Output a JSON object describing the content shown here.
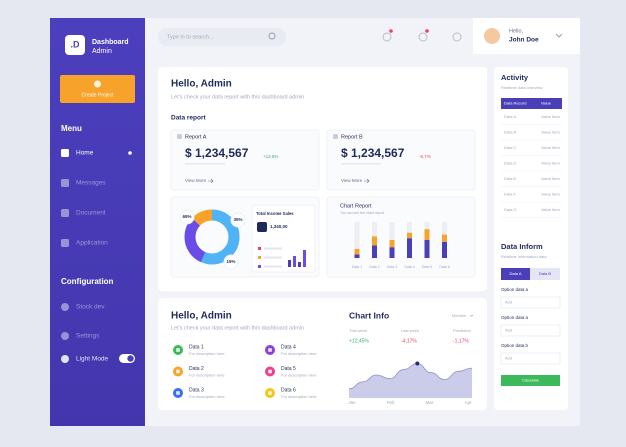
{
  "sidebar": {
    "logo": ".D",
    "brand": "Dashboard",
    "role": "Admin",
    "create_button": "Create Project",
    "menu_title": "Menu",
    "menu": [
      "Home",
      "Messages",
      "Document",
      "Application"
    ],
    "config_title": "Configuration",
    "config": [
      "Stock dev",
      "Settings",
      "Light Mode"
    ]
  },
  "topbar": {
    "search": "Type in to search...",
    "greeting": "Hello,",
    "user": "John Doe"
  },
  "overview": {
    "title": "Hello, Admin",
    "subtitle": "Let's check your data report with this dashboard admin",
    "section": "Data report",
    "reports": [
      {
        "name": "Report A",
        "amount": "$ 1,234,567",
        "change": "+12.5%",
        "change_color": "#2bb673",
        "link": "View More"
      },
      {
        "name": "Report B",
        "amount": "$ 1,234,567",
        "change": "-5.7%",
        "change_color": "#f0445b",
        "link": "View More"
      }
    ],
    "donut": {
      "values": [
        65,
        35,
        15
      ],
      "value_labels": [
        "65%",
        "35%",
        "15%"
      ],
      "colors": [
        "#4fb3f6",
        "#6a4de6",
        "#f7a32b"
      ]
    },
    "income": {
      "title": "Total Income Sales",
      "amount": "1,340,00"
    },
    "chart_report": {
      "title": "Chart Report",
      "subtitle": "You can see the chart report",
      "categories": [
        "Data 1",
        "Data 2",
        "Data 3",
        "Data 4",
        "Data 5",
        "Data 6"
      ],
      "purple": [
        10,
        35,
        30,
        55,
        50,
        45
      ],
      "orange": [
        15,
        25,
        20,
        15,
        30,
        20
      ],
      "colors": [
        "#4a3fb8",
        "#f7a32b"
      ],
      "ylim": [
        0,
        100
      ]
    }
  },
  "info": {
    "title": "Hello, Admin",
    "subtitle": "Let's check your data report with this dashboard admin",
    "items": [
      {
        "name": "Data 1",
        "desc": "For description here",
        "color": "#3cb95b"
      },
      {
        "name": "Data 2",
        "desc": "For description here",
        "color": "#f7a32b"
      },
      {
        "name": "Data 3",
        "desc": "For description here",
        "color": "#3b6cf5"
      },
      {
        "name": "Data 4",
        "desc": "For description here",
        "color": "#8a3fe0"
      },
      {
        "name": "Data 5",
        "desc": "For description here",
        "color": "#e8428f"
      },
      {
        "name": "Data 6",
        "desc": "For description here",
        "color": "#f5c518"
      }
    ],
    "chart": {
      "title": "Chart Info",
      "filter": "Member",
      "stats": [
        {
          "label": "This week",
          "value": "+12,45%",
          "color": "#2bb673"
        },
        {
          "label": "Last week",
          "value": "-4,17%",
          "color": "#f0445b"
        },
        {
          "label": "Prediction",
          "value": "-1,17%",
          "color": "#f0445b"
        }
      ],
      "x_labels": [
        "Jan",
        "Feb",
        "Mar",
        "Apr"
      ],
      "values": [
        20,
        35,
        50,
        42,
        62,
        75,
        55,
        40,
        58,
        65
      ],
      "ylim": [
        0,
        100
      ],
      "color": "#c5c6e8"
    }
  },
  "activity": {
    "title": "Activity",
    "subtitle": "Realtime data overview",
    "columns": [
      "Data Record",
      "Value"
    ],
    "rows": [
      [
        "Data A",
        "Value Item"
      ],
      [
        "Data B",
        "Value Item"
      ],
      [
        "Data C",
        "Value Item"
      ],
      [
        "Data D",
        "Value Item"
      ],
      [
        "Data E",
        "Value Item"
      ],
      [
        "Data F",
        "Value Item"
      ],
      [
        "Data G",
        "Value Item"
      ]
    ]
  },
  "inform": {
    "title": "Data Inform",
    "subtitle": "Realtime information data",
    "tabs": [
      "Data A",
      "Data B"
    ],
    "fields": [
      {
        "label": "Option data a",
        "placeholder": "Add"
      },
      {
        "label": "Option data a",
        "placeholder": "Add"
      },
      {
        "label": "Option data b",
        "placeholder": "Add"
      }
    ],
    "button": "Calculate"
  }
}
